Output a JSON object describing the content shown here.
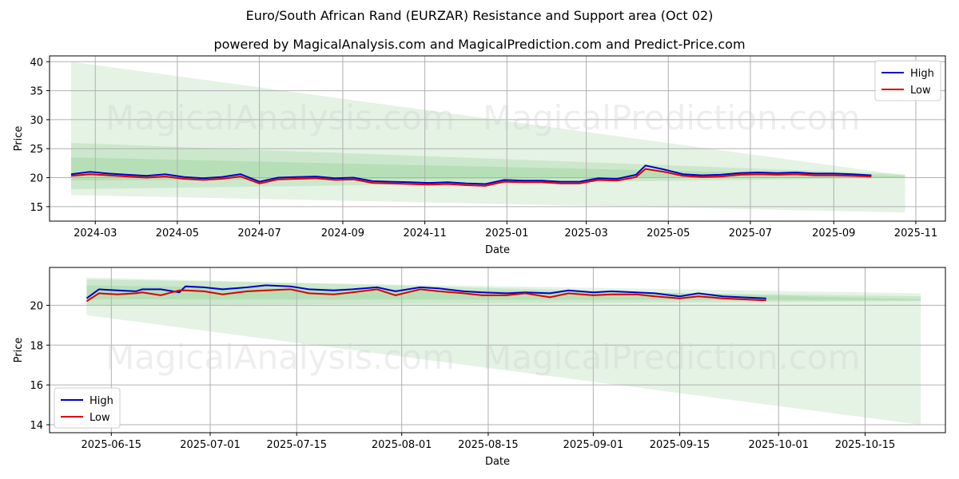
{
  "title": "Euro/South African Rand (EURZAR) Resistance and Support area (Oct 02)",
  "subtitle": "powered by MagicalAnalysis.com and MagicalPrediction.com and Predict-Price.com",
  "watermark": [
    "MagicalAnalysis.com",
    "MagicalPrediction.com"
  ],
  "colors": {
    "high": "#0000cc",
    "low": "#dd0000",
    "band": "#2ca02c",
    "grid": "#b0b0b0"
  },
  "chart_data": [
    {
      "type": "line",
      "xlabel": "Date",
      "ylabel": "Price",
      "xticks": [
        "2024-03",
        "2024-05",
        "2024-07",
        "2024-09",
        "2024-11",
        "2025-01",
        "2025-03",
        "2025-05",
        "2025-07",
        "2025-09",
        "2025-11"
      ],
      "yticks": [
        15,
        20,
        25,
        30,
        35,
        40
      ],
      "xlim": [
        "2024-01-27",
        "2025-11-23"
      ],
      "ylim": [
        12.5,
        41
      ],
      "grid": true,
      "legend": "top-right",
      "series": [
        {
          "name": "High",
          "x": [
            "2024-02-12",
            "2024-02-26",
            "2024-03-11",
            "2024-03-25",
            "2024-04-08",
            "2024-04-22",
            "2024-05-06",
            "2024-05-20",
            "2024-06-03",
            "2024-06-17",
            "2024-07-01",
            "2024-07-15",
            "2024-07-29",
            "2024-08-12",
            "2024-08-26",
            "2024-09-09",
            "2024-09-23",
            "2024-10-07",
            "2024-10-21",
            "2024-11-04",
            "2024-11-18",
            "2024-12-02",
            "2024-12-16",
            "2024-12-30",
            "2025-01-13",
            "2025-01-27",
            "2025-02-10",
            "2025-02-24",
            "2025-03-10",
            "2025-03-24",
            "2025-04-07",
            "2025-04-14",
            "2025-04-28",
            "2025-05-12",
            "2025-05-26",
            "2025-06-09",
            "2025-06-23",
            "2025-07-07",
            "2025-07-21",
            "2025-08-04",
            "2025-08-18",
            "2025-09-01",
            "2025-09-15",
            "2025-09-29"
          ],
          "values": [
            20.6,
            21.0,
            20.7,
            20.5,
            20.3,
            20.6,
            20.1,
            19.9,
            20.1,
            20.6,
            19.3,
            20.0,
            20.1,
            20.2,
            19.9,
            20.0,
            19.4,
            19.3,
            19.2,
            19.1,
            19.2,
            19.0,
            18.9,
            19.6,
            19.5,
            19.5,
            19.3,
            19.3,
            19.9,
            19.8,
            20.5,
            22.1,
            21.4,
            20.6,
            20.4,
            20.5,
            20.8,
            20.9,
            20.8,
            20.9,
            20.7,
            20.7,
            20.6,
            20.4
          ]
        },
        {
          "name": "Low",
          "x": [
            "2024-02-12",
            "2024-02-26",
            "2024-03-11",
            "2024-03-25",
            "2024-04-08",
            "2024-04-22",
            "2024-05-06",
            "2024-05-20",
            "2024-06-03",
            "2024-06-17",
            "2024-07-01",
            "2024-07-15",
            "2024-07-29",
            "2024-08-12",
            "2024-08-26",
            "2024-09-09",
            "2024-09-23",
            "2024-10-07",
            "2024-10-21",
            "2024-11-04",
            "2024-11-18",
            "2024-12-02",
            "2024-12-16",
            "2024-12-30",
            "2025-01-13",
            "2025-01-27",
            "2025-02-10",
            "2025-02-24",
            "2025-03-10",
            "2025-03-24",
            "2025-04-07",
            "2025-04-14",
            "2025-04-28",
            "2025-05-12",
            "2025-05-26",
            "2025-06-09",
            "2025-06-23",
            "2025-07-07",
            "2025-07-21",
            "2025-08-04",
            "2025-08-18",
            "2025-09-01",
            "2025-09-15",
            "2025-09-29"
          ],
          "values": [
            20.3,
            20.6,
            20.4,
            20.2,
            20.0,
            20.2,
            19.8,
            19.6,
            19.8,
            20.2,
            19.0,
            19.7,
            19.8,
            19.9,
            19.6,
            19.7,
            19.1,
            19.0,
            18.9,
            18.8,
            18.9,
            18.7,
            18.6,
            19.3,
            19.2,
            19.2,
            19.0,
            19.0,
            19.6,
            19.5,
            20.1,
            21.5,
            21.0,
            20.3,
            20.1,
            20.2,
            20.5,
            20.6,
            20.5,
            20.6,
            20.4,
            20.4,
            20.3,
            20.2
          ]
        }
      ],
      "bands": [
        {
          "x": [
            "2024-02-12",
            "2025-10-24"
          ],
          "upper": [
            40,
            20.4
          ],
          "lower": [
            17,
            14
          ]
        },
        {
          "x": [
            "2024-02-12",
            "2025-10-24"
          ],
          "upper": [
            26,
            20.6
          ],
          "lower": [
            18,
            20.0
          ]
        },
        {
          "x": [
            "2024-02-12",
            "2025-10-24"
          ],
          "upper": [
            23.5,
            20.3
          ],
          "lower": [
            19.5,
            20.1
          ]
        }
      ]
    },
    {
      "type": "line",
      "xlabel": "Date",
      "ylabel": "Price",
      "xticks": [
        "2025-06-15",
        "2025-07-01",
        "2025-07-15",
        "2025-08-01",
        "2025-08-15",
        "2025-09-01",
        "2025-09-15",
        "2025-10-01",
        "2025-10-15"
      ],
      "yticks": [
        14,
        16,
        18,
        20
      ],
      "xlim": [
        "2025-06-05",
        "2025-10-28"
      ],
      "ylim": [
        13.6,
        21.9
      ],
      "grid": true,
      "legend": "bottom-left",
      "series": [
        {
          "name": "High",
          "x": [
            "2025-06-11",
            "2025-06-13",
            "2025-06-16",
            "2025-06-19",
            "2025-06-20",
            "2025-06-23",
            "2025-06-26",
            "2025-06-27",
            "2025-06-30",
            "2025-07-03",
            "2025-07-07",
            "2025-07-10",
            "2025-07-14",
            "2025-07-17",
            "2025-07-21",
            "2025-07-24",
            "2025-07-28",
            "2025-07-31",
            "2025-08-04",
            "2025-08-07",
            "2025-08-11",
            "2025-08-14",
            "2025-08-18",
            "2025-08-21",
            "2025-08-25",
            "2025-08-28",
            "2025-09-01",
            "2025-09-04",
            "2025-09-08",
            "2025-09-11",
            "2025-09-15",
            "2025-09-18",
            "2025-09-22",
            "2025-09-25",
            "2025-09-29"
          ],
          "values": [
            20.35,
            20.8,
            20.75,
            20.7,
            20.8,
            20.8,
            20.65,
            20.95,
            20.9,
            20.8,
            20.9,
            21.0,
            20.95,
            20.8,
            20.75,
            20.8,
            20.9,
            20.7,
            20.9,
            20.85,
            20.7,
            20.65,
            20.6,
            20.65,
            20.6,
            20.75,
            20.65,
            20.7,
            20.65,
            20.6,
            20.45,
            20.6,
            20.45,
            20.4,
            20.35
          ]
        },
        {
          "name": "Low",
          "x": [
            "2025-06-11",
            "2025-06-13",
            "2025-06-16",
            "2025-06-19",
            "2025-06-20",
            "2025-06-23",
            "2025-06-26",
            "2025-06-27",
            "2025-06-30",
            "2025-07-03",
            "2025-07-07",
            "2025-07-10",
            "2025-07-14",
            "2025-07-17",
            "2025-07-21",
            "2025-07-24",
            "2025-07-28",
            "2025-07-31",
            "2025-08-04",
            "2025-08-07",
            "2025-08-11",
            "2025-08-14",
            "2025-08-18",
            "2025-08-21",
            "2025-08-25",
            "2025-08-28",
            "2025-09-01",
            "2025-09-04",
            "2025-09-08",
            "2025-09-11",
            "2025-09-15",
            "2025-09-18",
            "2025-09-22",
            "2025-09-25",
            "2025-09-29"
          ],
          "values": [
            20.2,
            20.6,
            20.55,
            20.6,
            20.65,
            20.5,
            20.75,
            20.75,
            20.7,
            20.55,
            20.7,
            20.75,
            20.8,
            20.6,
            20.55,
            20.65,
            20.8,
            20.5,
            20.8,
            20.7,
            20.6,
            20.5,
            20.5,
            20.6,
            20.4,
            20.6,
            20.5,
            20.55,
            20.55,
            20.45,
            20.35,
            20.45,
            20.35,
            20.3,
            20.25
          ]
        }
      ],
      "bands": [
        {
          "x": [
            "2025-06-11",
            "2025-10-24"
          ],
          "upper": [
            21.4,
            20.3
          ],
          "lower": [
            19.5,
            14.0
          ]
        },
        {
          "x": [
            "2025-06-11",
            "2025-10-24"
          ],
          "upper": [
            21.3,
            20.6
          ],
          "lower": [
            20.0,
            20.2
          ]
        },
        {
          "x": [
            "2025-06-11",
            "2025-10-24"
          ],
          "upper": [
            21.0,
            20.45
          ],
          "lower": [
            20.3,
            20.25
          ]
        }
      ]
    }
  ]
}
